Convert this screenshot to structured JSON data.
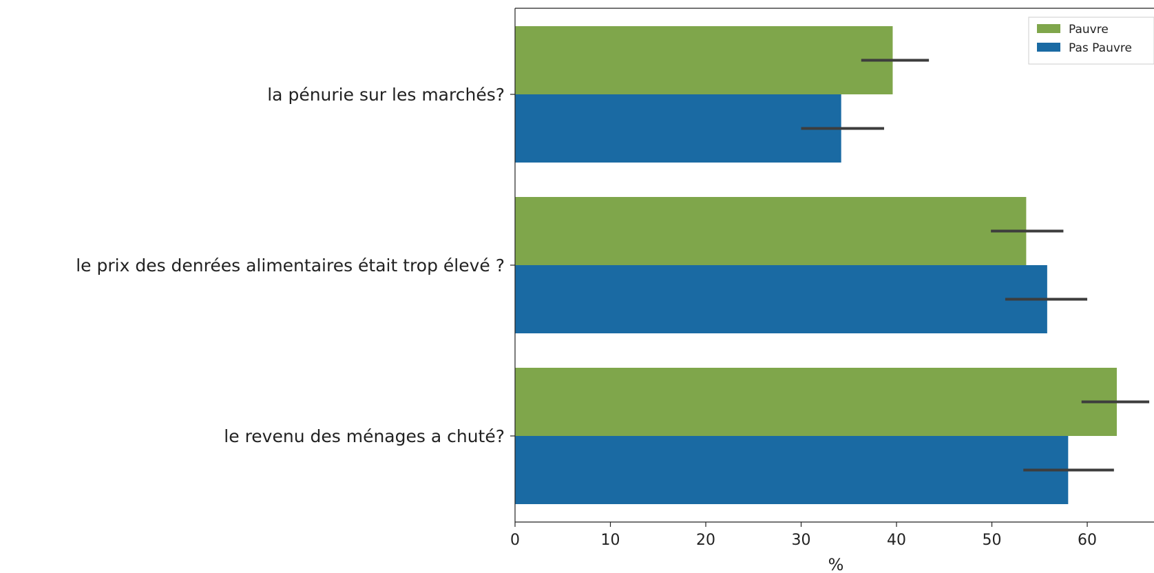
{
  "chart_data": {
    "type": "bar",
    "orientation": "horizontal",
    "categories": [
      "la pénurie sur les marchés?",
      "le prix des denrées alimentaires était trop élevé ?",
      "le revenu des ménages a chuté?"
    ],
    "series": [
      {
        "name": "Pauvre",
        "color": "#7fa64b",
        "values": [
          39.6,
          53.6,
          63.1
        ],
        "error_low": [
          36.3,
          49.9,
          59.4
        ],
        "error_high": [
          43.4,
          57.5,
          66.5
        ]
      },
      {
        "name": "Pas Pauvre",
        "color": "#1a6aa3",
        "values": [
          34.2,
          55.8,
          58.0
        ],
        "error_low": [
          30.0,
          51.4,
          53.3
        ],
        "error_high": [
          38.7,
          60.0,
          62.8
        ]
      }
    ],
    "xlabel": "%",
    "ylabel": "",
    "xlim": [
      0,
      67
    ],
    "xticks": [
      0,
      10,
      20,
      30,
      40,
      50,
      60
    ],
    "error_bar_color": "#3d3d3d",
    "grid": false,
    "legend_position": "top-right"
  }
}
